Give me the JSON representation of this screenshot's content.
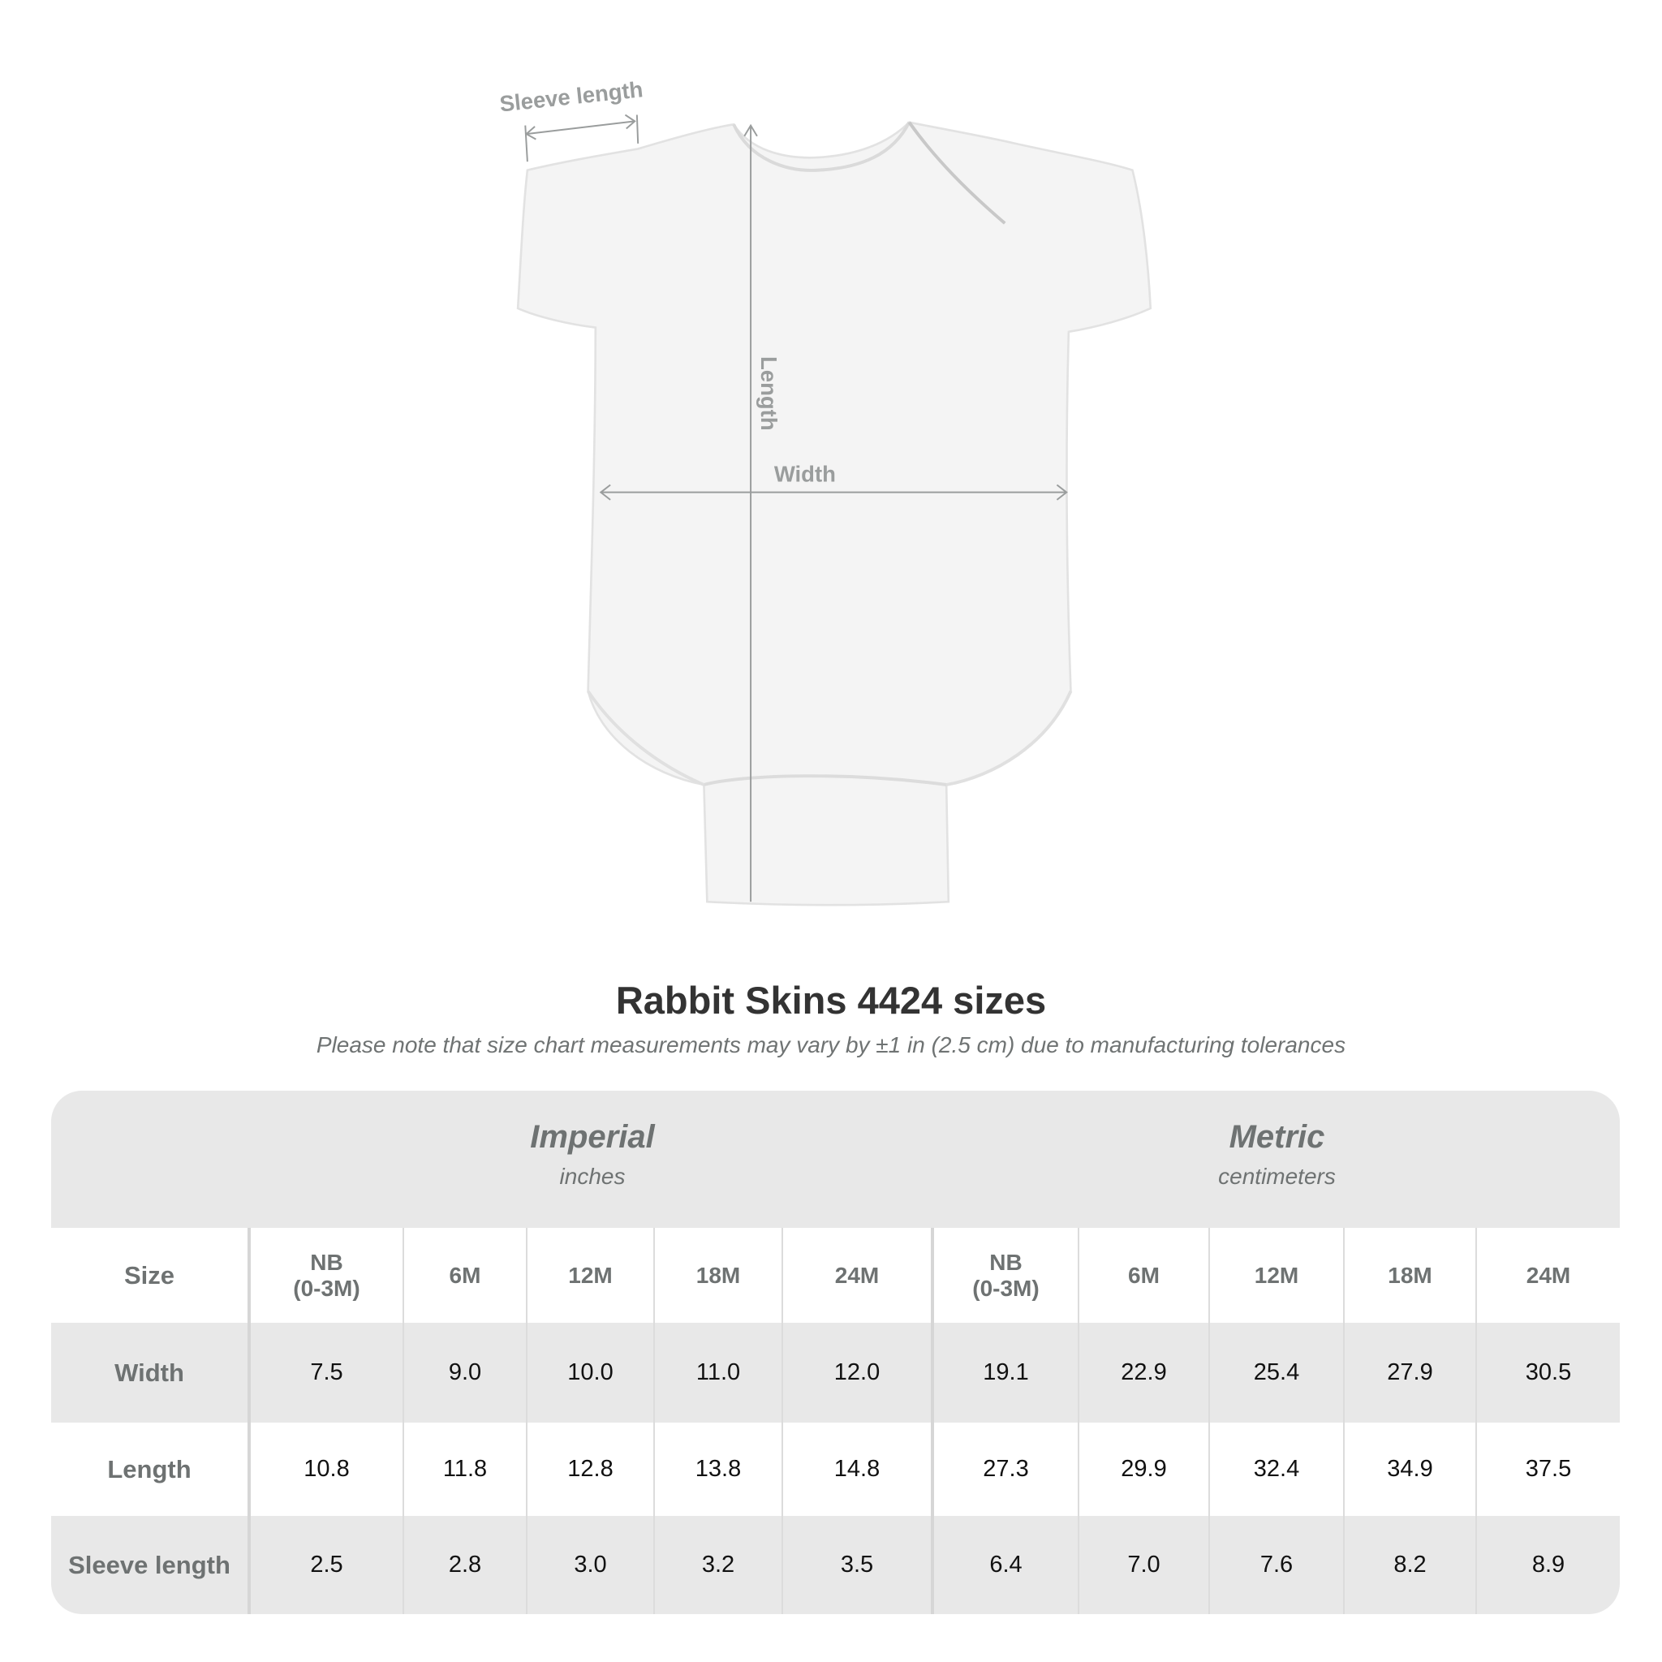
{
  "diagram": {
    "sleeve_label": "Sleeve length",
    "length_label": "Length",
    "width_label": "Width",
    "garment_color": "#f3f3f3",
    "measure_color": "#9a9d9d"
  },
  "title": "Rabbit Skins 4424 sizes",
  "subtitle": "Please note that size chart measurements may vary by ±1 in (2.5 cm) due to manufacturing tolerances",
  "table": {
    "imperial": {
      "label": "Imperial",
      "unit": "inches"
    },
    "metric": {
      "label": "Metric",
      "unit": "centimeters"
    },
    "size_label": "Size",
    "sizes": [
      "NB\n(0-3M)",
      "6M",
      "12M",
      "18M",
      "24M"
    ],
    "rows": [
      {
        "label": "Width",
        "imperial": [
          "7.5",
          "9.0",
          "10.0",
          "11.0",
          "12.0"
        ],
        "metric": [
          "19.1",
          "22.9",
          "25.4",
          "27.9",
          "30.5"
        ]
      },
      {
        "label": "Length",
        "imperial": [
          "10.8",
          "11.8",
          "12.8",
          "13.8",
          "14.8"
        ],
        "metric": [
          "27.3",
          "29.9",
          "32.4",
          "34.9",
          "37.5"
        ]
      },
      {
        "label": "Sleeve length",
        "imperial": [
          "2.5",
          "2.8",
          "3.0",
          "3.2",
          "3.5"
        ],
        "metric": [
          "6.4",
          "7.0",
          "7.6",
          "8.2",
          "8.9"
        ]
      }
    ]
  }
}
